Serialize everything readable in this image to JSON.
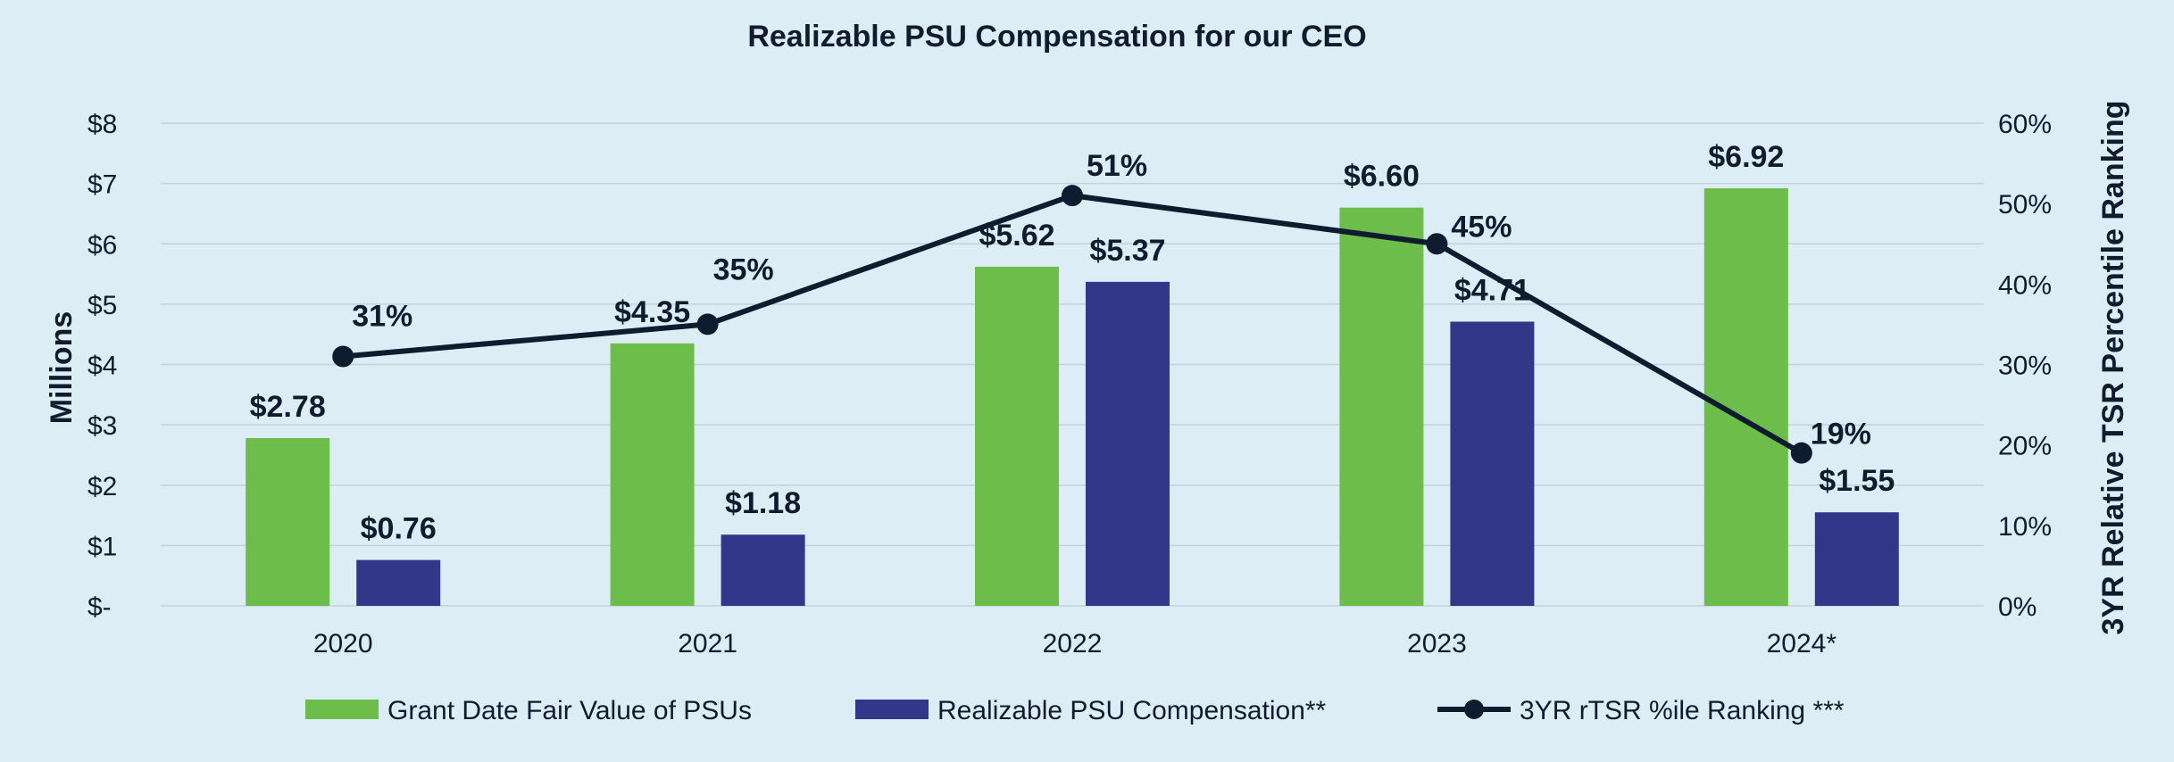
{
  "chart_data": {
    "type": "bar",
    "title": "Realizable PSU Compensation for our CEO",
    "categories": [
      "2020",
      "2021",
      "2022",
      "2023",
      "2024*"
    ],
    "ylabel": "Millions",
    "y2label": "3YR Relative TSR Percentile Ranking",
    "ylim": [
      0,
      8
    ],
    "y2lim": [
      0,
      60
    ],
    "yticks": [
      "$-",
      "$1",
      "$2",
      "$3",
      "$4",
      "$5",
      "$6",
      "$7",
      "$8"
    ],
    "y2ticks": [
      "0%",
      "10%",
      "20%",
      "30%",
      "40%",
      "50%",
      "60%"
    ],
    "grid": true,
    "legend_position": "bottom",
    "series": [
      {
        "name": "Grant Date Fair Value of PSUs",
        "type": "bar",
        "axis": "left",
        "color": "#6cbd4a",
        "values": [
          2.78,
          4.35,
          5.62,
          6.6,
          6.92
        ],
        "labels": [
          "$2.78",
          "$4.35",
          "$5.62",
          "$6.60",
          "$6.92"
        ]
      },
      {
        "name": "Realizable PSU Compensation**",
        "type": "bar",
        "axis": "left",
        "color": "#33378a",
        "values": [
          0.76,
          1.18,
          5.37,
          4.71,
          1.55
        ],
        "labels": [
          "$0.76",
          "$1.18",
          "$5.37",
          "$4.71",
          "$1.55"
        ]
      },
      {
        "name": "3YR rTSR %ile Ranking ***",
        "type": "line",
        "axis": "right",
        "color": "#0f1b2e",
        "values": [
          31,
          35,
          51,
          45,
          19
        ],
        "labels": [
          "31%",
          "35%",
          "51%",
          "45%",
          "19%"
        ]
      }
    ]
  }
}
